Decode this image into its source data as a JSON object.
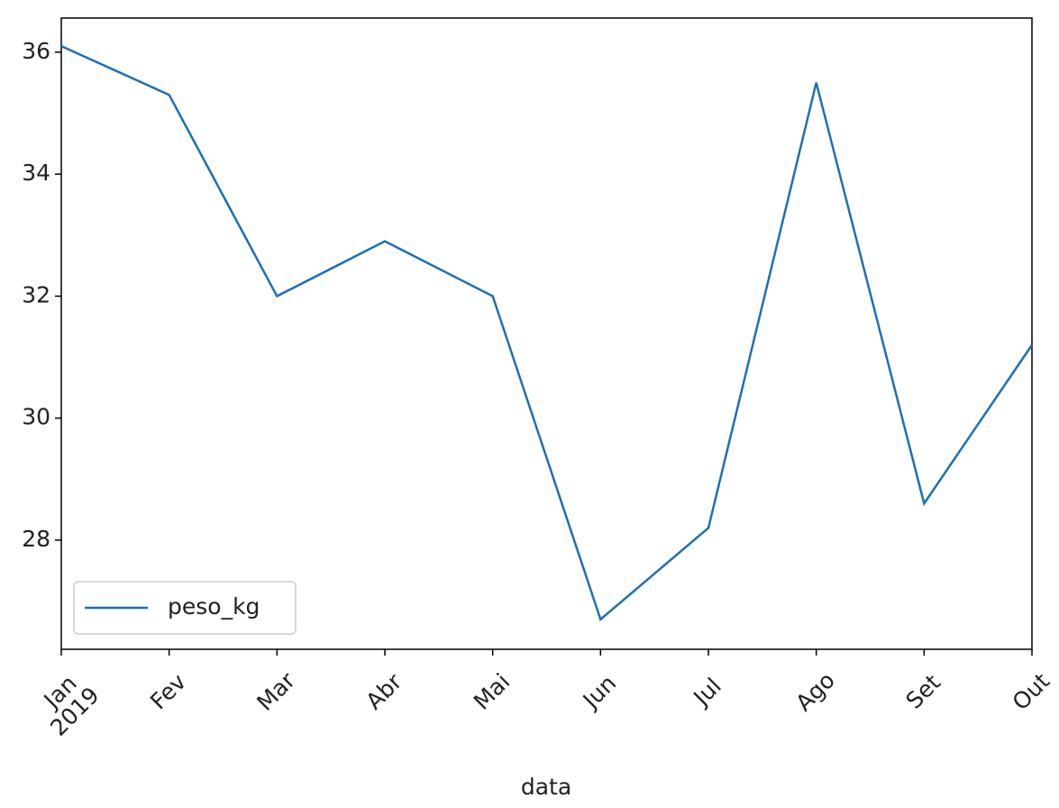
{
  "chart_data": {
    "type": "line",
    "x_label": "data",
    "categories": [
      "Jan",
      "Fev",
      "Mar",
      "Abr",
      "Mai",
      "Jun",
      "Jul",
      "Ago",
      "Set",
      "Out"
    ],
    "year_label": "2019",
    "series": [
      {
        "name": "peso_kg",
        "color": "#1f6fb4",
        "values": [
          36.1,
          35.3,
          32.0,
          32.9,
          32.0,
          26.7,
          28.2,
          35.5,
          28.6,
          31.2
        ]
      }
    ],
    "ylim": [
      26.21,
      36.56
    ],
    "yticks": [
      28,
      30,
      32,
      34,
      36
    ],
    "grid": false,
    "legend": "lower left"
  }
}
